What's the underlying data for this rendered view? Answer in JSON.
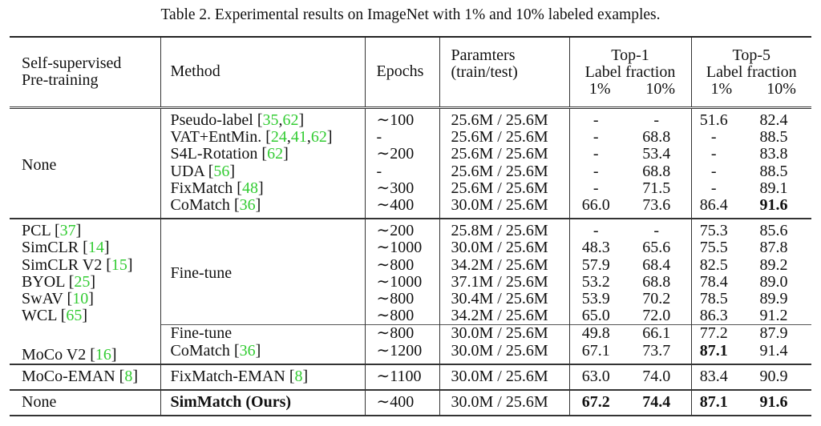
{
  "caption": "Table 2. Experimental results on ImageNet with 1% and 10% labeled examples.",
  "ref_color": "#33cc33",
  "header": {
    "pretrain": [
      "Self-supervised",
      "Pre-training"
    ],
    "method": "Method",
    "epochs": "Epochs",
    "params": [
      "Paramters",
      "(train/test)"
    ],
    "top1": "Top-1",
    "top5": "Top-5",
    "label_fraction": "Label fraction",
    "fractions": [
      "1%",
      "10%"
    ]
  },
  "groups": [
    {
      "rows": [
        {
          "pretrain": {
            "text": "None",
            "refs": [],
            "align": "middle"
          },
          "method": {
            "text": "Pseudo-label",
            "refs": [
              "35",
              "62"
            ]
          },
          "epochs": "∼100",
          "params": "25.6M / 25.6M",
          "values": [
            "-",
            "-",
            "51.6",
            "82.4"
          ],
          "bold": []
        },
        {
          "pretrain": null,
          "method": {
            "text": "VAT+EntMin.",
            "refs": [
              "24",
              "41",
              "62"
            ]
          },
          "epochs": "-",
          "params": "25.6M / 25.6M",
          "values": [
            "-",
            "68.8",
            "-",
            "88.5"
          ],
          "bold": []
        },
        {
          "pretrain": null,
          "method": {
            "text": "S4L-Rotation",
            "refs": [
              "62"
            ]
          },
          "epochs": "∼200",
          "params": "25.6M / 25.6M",
          "values": [
            "-",
            "53.4",
            "-",
            "83.8"
          ],
          "bold": []
        },
        {
          "pretrain": null,
          "method": {
            "text": "UDA",
            "refs": [
              "56"
            ]
          },
          "epochs": "-",
          "params": "25.6M / 25.6M",
          "values": [
            "-",
            "68.8",
            "-",
            "88.5"
          ],
          "bold": []
        },
        {
          "pretrain": null,
          "method": {
            "text": "FixMatch",
            "refs": [
              "48"
            ]
          },
          "epochs": "∼300",
          "params": "25.6M / 25.6M",
          "values": [
            "-",
            "71.5",
            "-",
            "89.1"
          ],
          "bold": []
        },
        {
          "pretrain": null,
          "method": {
            "text": "CoMatch",
            "refs": [
              "36"
            ]
          },
          "epochs": "∼400",
          "params": "30.0M / 25.6M",
          "values": [
            "66.0",
            "73.6",
            "86.4",
            "91.6"
          ],
          "bold": [
            3
          ]
        }
      ]
    },
    {
      "rows": [
        {
          "pretrain": {
            "text": "PCL",
            "refs": [
              "37"
            ]
          },
          "method": {
            "text": "Fine-tune",
            "refs": []
          },
          "epochs": "∼200",
          "params": "25.8M / 25.6M",
          "values": [
            "-",
            "-",
            "75.3",
            "85.6"
          ],
          "bold": []
        },
        {
          "pretrain": {
            "text": "SimCLR",
            "refs": [
              "14"
            ]
          },
          "method": null,
          "epochs": "∼1000",
          "params": "30.0M / 25.6M",
          "values": [
            "48.3",
            "65.6",
            "75.5",
            "87.8"
          ],
          "bold": []
        },
        {
          "pretrain": {
            "text": "SimCLR V2",
            "refs": [
              "15"
            ]
          },
          "method": null,
          "epochs": "∼800",
          "params": "34.2M / 25.6M",
          "values": [
            "57.9",
            "68.4",
            "82.5",
            "89.2"
          ],
          "bold": []
        },
        {
          "pretrain": {
            "text": "BYOL",
            "refs": [
              "25"
            ]
          },
          "method": null,
          "epochs": "∼1000",
          "params": "37.1M / 25.6M",
          "values": [
            "53.2",
            "68.8",
            "78.4",
            "89.0"
          ],
          "bold": []
        },
        {
          "pretrain": {
            "text": "SwAV",
            "refs": [
              "10"
            ]
          },
          "method": null,
          "epochs": "∼800",
          "params": "30.4M / 25.6M",
          "values": [
            "53.9",
            "70.2",
            "78.5",
            "89.9"
          ],
          "bold": []
        },
        {
          "pretrain": {
            "text": "WCL",
            "refs": [
              "65"
            ]
          },
          "method": null,
          "epochs": "∼800",
          "params": "34.2M / 25.6M",
          "values": [
            "65.0",
            "72.0",
            "86.3",
            "91.2"
          ],
          "bold": []
        },
        {
          "pretrain": {
            "text": "MoCo V2",
            "refs": [
              "16"
            ],
            "align": "bottom"
          },
          "rule_above": true,
          "method": {
            "text": "Fine-tune",
            "refs": []
          },
          "epochs": "∼800",
          "params": "30.0M / 25.6M",
          "values": [
            "49.8",
            "66.1",
            "77.2",
            "87.9"
          ],
          "bold": []
        },
        {
          "pretrain": null,
          "method": {
            "text": "CoMatch",
            "refs": [
              "36"
            ]
          },
          "epochs": "∼1200",
          "params": "30.0M / 25.6M",
          "values": [
            "67.1",
            "73.7",
            "87.1",
            "91.4"
          ],
          "bold": [
            2
          ]
        }
      ]
    },
    {
      "rows": [
        {
          "pretrain": {
            "text": "MoCo-EMAN",
            "refs": [
              "8"
            ]
          },
          "method": {
            "text": "FixMatch-EMAN",
            "refs": [
              "8"
            ]
          },
          "epochs": "∼1100",
          "params": "30.0M / 25.6M",
          "values": [
            "63.0",
            "74.0",
            "83.4",
            "90.9"
          ],
          "bold": []
        }
      ]
    },
    {
      "rows": [
        {
          "pretrain": {
            "text": "None",
            "refs": []
          },
          "method": {
            "text": "SimMatch (Ours)",
            "refs": [],
            "bold": true
          },
          "epochs": "∼400",
          "params": "30.0M / 25.6M",
          "values": [
            "67.2",
            "74.4",
            "87.1",
            "91.6"
          ],
          "bold": [
            0,
            1,
            2,
            3
          ]
        }
      ]
    }
  ]
}
